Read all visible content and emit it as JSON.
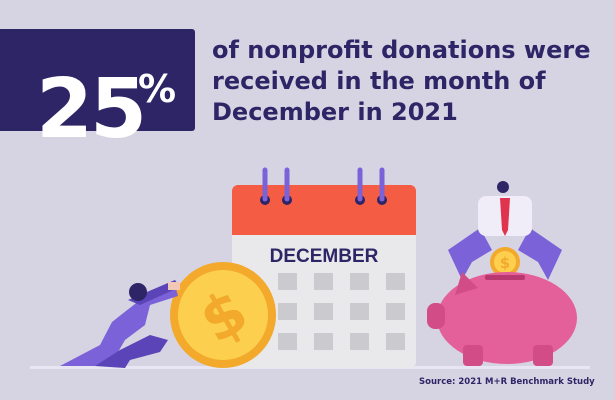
{
  "stat": {
    "value": "25",
    "unit": "%"
  },
  "headline": "of nonprofit donations were received in the month of December in 2021",
  "calendar": {
    "month": "DECEMBER"
  },
  "source": "Source: 2021 M+R Benchmark Study",
  "colors": {
    "background": "#d6d4e2",
    "primary": "#2e2566",
    "calendar_header": "#f45c44",
    "coin": "#f9c43a",
    "piggy": "#e4609a",
    "figure": "#7b62d8"
  },
  "icons": [
    "calendar-icon",
    "coin-icon",
    "piggy-bank-icon",
    "person-pushing-icon",
    "person-with-coin-icon"
  ]
}
